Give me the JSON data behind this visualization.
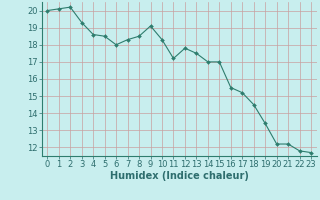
{
  "x": [
    0,
    1,
    2,
    3,
    4,
    5,
    6,
    7,
    8,
    9,
    10,
    11,
    12,
    13,
    14,
    15,
    16,
    17,
    18,
    19,
    20,
    21,
    22,
    23
  ],
  "y": [
    20.0,
    20.1,
    20.2,
    19.3,
    18.6,
    18.5,
    18.0,
    18.3,
    18.5,
    19.1,
    18.3,
    17.2,
    17.8,
    17.5,
    17.0,
    17.0,
    15.5,
    15.2,
    14.5,
    13.4,
    12.2,
    12.2,
    11.8,
    11.7
  ],
  "line_color": "#2e7d6e",
  "marker_color": "#2e7d6e",
  "bg_color": "#c8eeee",
  "grid_color_major": "#c8a0a0",
  "font_color": "#2e6e6e",
  "xlabel": "Humidex (Indice chaleur)",
  "xlim": [
    -0.5,
    23.5
  ],
  "ylim": [
    11.5,
    20.5
  ],
  "yticks": [
    12,
    13,
    14,
    15,
    16,
    17,
    18,
    19,
    20
  ],
  "xticks": [
    0,
    1,
    2,
    3,
    4,
    5,
    6,
    7,
    8,
    9,
    10,
    11,
    12,
    13,
    14,
    15,
    16,
    17,
    18,
    19,
    20,
    21,
    22,
    23
  ],
  "xlabel_fontsize": 7,
  "tick_fontsize": 6
}
